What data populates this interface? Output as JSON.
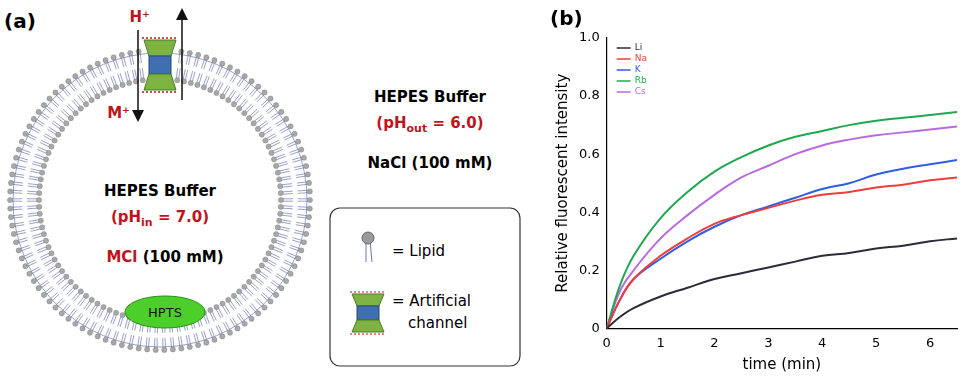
{
  "diagram": {
    "panel_label": "(a)",
    "channel_ions": {
      "up": "H⁺",
      "down": "M⁺"
    },
    "inside": {
      "buffer": "HEPES Buffer",
      "ph": {
        "prefix": "(pH",
        "subscript": "in",
        "suffix": " = 7.0)"
      },
      "salt": {
        "cation": "MCl",
        "rest": " (100 mM)"
      },
      "dye": "HPTS"
    },
    "outside": {
      "buffer": "HEPES Buffer",
      "ph": {
        "prefix": "(pH",
        "subscript": "out",
        "suffix": " = 6.0)"
      },
      "salt": "NaCl (100 mM)"
    },
    "key": {
      "lipid": "= Lipid",
      "channel": [
        "= Artificial",
        "channel"
      ]
    }
  },
  "chart_data": {
    "type": "line",
    "title": "(b)",
    "x_label": "time (min)",
    "y_label": "Relative fluorescent intensity",
    "x": [
      0,
      0.25,
      0.5,
      1,
      1.5,
      2,
      2.5,
      3,
      3.5,
      4,
      4.5,
      5,
      5.5,
      6,
      6.5
    ],
    "series": [
      {
        "name": "Li",
        "color": "#2b2b3a",
        "values": [
          0,
          0.04,
          0.07,
          0.11,
          0.14,
          0.17,
          0.19,
          0.21,
          0.23,
          0.25,
          0.26,
          0.275,
          0.285,
          0.3,
          0.31
        ]
      },
      {
        "name": "Na",
        "color": "#f03c3c",
        "values": [
          0,
          0.1,
          0.17,
          0.25,
          0.31,
          0.36,
          0.39,
          0.415,
          0.44,
          0.46,
          0.47,
          0.485,
          0.495,
          0.51,
          0.52
        ]
      },
      {
        "name": "K",
        "color": "#2f5fe0",
        "values": [
          0,
          0.1,
          0.17,
          0.24,
          0.3,
          0.35,
          0.39,
          0.42,
          0.45,
          0.48,
          0.5,
          0.53,
          0.55,
          0.565,
          0.58
        ]
      },
      {
        "name": "Rb",
        "color": "#1fa84f",
        "values": [
          0,
          0.15,
          0.25,
          0.38,
          0.47,
          0.54,
          0.59,
          0.63,
          0.66,
          0.68,
          0.7,
          0.715,
          0.725,
          0.735,
          0.745
        ]
      },
      {
        "name": "Cs",
        "color": "#b86ae0",
        "values": [
          0,
          0.13,
          0.2,
          0.31,
          0.39,
          0.46,
          0.52,
          0.56,
          0.6,
          0.63,
          0.65,
          0.665,
          0.675,
          0.685,
          0.695
        ]
      }
    ],
    "xlim": [
      0,
      6.5
    ],
    "xticks": [
      0,
      1,
      2,
      3,
      4,
      5,
      6
    ],
    "ylim": [
      0,
      1
    ],
    "yticks": [
      0,
      0.2,
      0.4,
      0.6,
      0.8,
      {
        "value": 1,
        "label": "1.0"
      }
    ],
    "grid": false,
    "legend": "upper left"
  }
}
